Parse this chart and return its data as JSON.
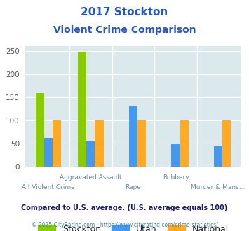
{
  "title_line1": "2017 Stockton",
  "title_line2": "Violent Crime Comparison",
  "categories": [
    "All Violent Crime",
    "Aggravated Assault",
    "Rape",
    "Robbery",
    "Murder & Mans..."
  ],
  "cat_labels_row1": [
    "",
    "Aggravated Assault",
    "",
    "Robbery",
    ""
  ],
  "cat_labels_row2": [
    "All Violent Crime",
    "",
    "Rape",
    "",
    "Murder & Mans..."
  ],
  "series": {
    "Stockton": [
      158,
      248,
      0,
      0,
      0
    ],
    "Utah": [
      62,
      54,
      130,
      50,
      45
    ],
    "National": [
      100,
      100,
      100,
      100,
      100
    ]
  },
  "colors": {
    "Stockton": "#88cc00",
    "Utah": "#4499ee",
    "National": "#ffaa22"
  },
  "ylim": [
    0,
    260
  ],
  "yticks": [
    0,
    50,
    100,
    150,
    200,
    250
  ],
  "plot_bg": "#dce9ec",
  "title_color": "#2255cc",
  "footer1": "Compared to U.S. average. (U.S. average equals 100)",
  "footer2": "© 2025 CityRating.com - https://www.cityrating.com/crime-statistics/",
  "footer1_color": "#1a1a6e",
  "footer2_color": "#4488aa",
  "legend_fontsize": 9,
  "tick_fontsize": 7.5,
  "xticklabel_color": "#6688aa"
}
